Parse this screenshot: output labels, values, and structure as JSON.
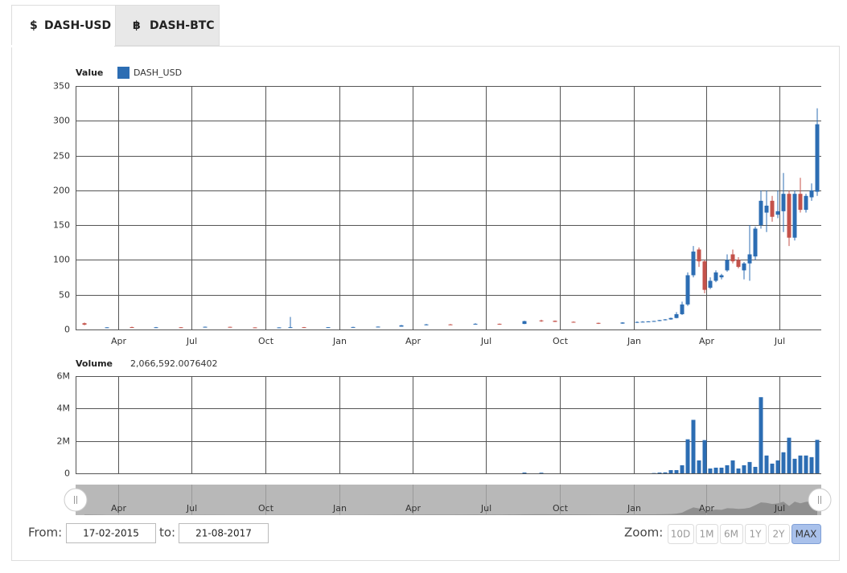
{
  "tabs": [
    {
      "icon": "$",
      "label": "DASH-USD"
    },
    {
      "icon": "฿",
      "label": "DASH-BTC"
    }
  ],
  "chart_data": [
    {
      "type": "candlestick",
      "y_label": "Value",
      "xlim": [
        "2015-02-07",
        "2017-08-22"
      ],
      "xticks": [
        {
          "value": "2015-04-01",
          "label": "Apr"
        },
        {
          "value": "2015-07-01",
          "label": "Jul"
        },
        {
          "value": "2015-10-01",
          "label": "Oct"
        },
        {
          "value": "2016-01-01",
          "label": "Jan"
        },
        {
          "value": "2016-04-01",
          "label": "Apr"
        },
        {
          "value": "2016-07-01",
          "label": "Jul"
        },
        {
          "value": "2016-10-01",
          "label": "Oct"
        },
        {
          "value": "2017-01-01",
          "label": "Jan"
        },
        {
          "value": "2017-04-01",
          "label": "Apr"
        },
        {
          "value": "2017-07-01",
          "label": "Jul"
        }
      ],
      "ylim": [
        0,
        350
      ],
      "yticks": [
        0,
        50,
        100,
        150,
        200,
        250,
        300,
        350
      ],
      "grid": true,
      "x": [
        "2015-02-18",
        "2015-03-18",
        "2015-04-18",
        "2015-05-18",
        "2015-06-18",
        "2015-07-18",
        "2015-08-18",
        "2015-09-18",
        "2015-10-18",
        "2015-11-01",
        "2015-11-18",
        "2015-12-18",
        "2016-01-18",
        "2016-02-18",
        "2016-03-18",
        "2016-04-18",
        "2016-05-18",
        "2016-06-18",
        "2016-07-18",
        "2016-08-18",
        "2016-09-08",
        "2016-09-25",
        "2016-10-18",
        "2016-11-18",
        "2016-12-18",
        "2017-01-05",
        "2017-01-12",
        "2017-01-19",
        "2017-01-26",
        "2017-02-02",
        "2017-02-09",
        "2017-02-16",
        "2017-02-23",
        "2017-03-02",
        "2017-03-09",
        "2017-03-16",
        "2017-03-23",
        "2017-03-30",
        "2017-04-06",
        "2017-04-13",
        "2017-04-20",
        "2017-04-27",
        "2017-05-04",
        "2017-05-11",
        "2017-05-18",
        "2017-05-25",
        "2017-06-01",
        "2017-06-08",
        "2017-06-15",
        "2017-06-22",
        "2017-06-29",
        "2017-07-06",
        "2017-07-13",
        "2017-07-20",
        "2017-07-27",
        "2017-08-03",
        "2017-08-10",
        "2017-08-17"
      ],
      "series": [
        {
          "name": "DASH_USD",
          "color": "#2c6db3",
          "down_color": "#c4524a",
          "open": [
            9,
            2.8,
            3.5,
            3,
            3.2,
            3.6,
            3.8,
            3,
            2.8,
            3,
            3.3,
            3.1,
            3.4,
            3.6,
            4.1,
            6.5,
            7.3,
            7.5,
            8.2,
            8,
            13,
            12.5,
            11,
            9.5,
            8.5,
            10,
            10.8,
            11.2,
            11.6,
            12.2,
            13.5,
            14.5,
            16.5,
            22,
            36,
            78,
            115,
            98,
            60,
            70,
            75,
            85,
            108,
            100,
            85,
            95,
            105,
            150,
            168,
            185,
            165,
            170,
            195,
            132,
            195,
            172,
            190,
            198
          ],
          "high": [
            10,
            3.3,
            4,
            3.6,
            3.5,
            4.2,
            4.1,
            3.2,
            3.2,
            18,
            3.6,
            3.5,
            3.9,
            4.3,
            6.5,
            8,
            8,
            9,
            8.5,
            12.5,
            14,
            12.8,
            11.5,
            9.8,
            10.5,
            11.5,
            12,
            12,
            12.5,
            13.8,
            15,
            17,
            25,
            40,
            82,
            120,
            118,
            100,
            75,
            85,
            80,
            108,
            115,
            104,
            97,
            150,
            148,
            200,
            200,
            192,
            200,
            225,
            200,
            200,
            218,
            195,
            210,
            318
          ],
          "low": [
            6,
            2.5,
            2.8,
            2.7,
            2.6,
            3.3,
            2.9,
            2.6,
            2.6,
            2.9,
            2.9,
            3,
            3.2,
            3.4,
            4,
            6,
            6.6,
            7,
            6.8,
            7.8,
            11,
            10.8,
            9.8,
            8,
            8.3,
            9.5,
            10.3,
            10.7,
            11.2,
            12,
            13,
            14,
            16,
            21,
            34,
            75,
            90,
            52,
            58,
            68,
            72,
            83,
            95,
            88,
            72,
            70,
            100,
            145,
            140,
            155,
            160,
            140,
            120,
            128,
            168,
            168,
            185,
            192
          ],
          "close": [
            7,
            3.1,
            3,
            3.2,
            2.9,
            3.9,
            3.1,
            2.8,
            3,
            3.3,
            3.1,
            3.3,
            3.6,
            4.1,
            6,
            7.3,
            7.1,
            8.2,
            7.3,
            12,
            12.5,
            11,
            10,
            8.3,
            10,
            10.8,
            11.2,
            11.6,
            12.2,
            13.5,
            14.5,
            16.5,
            22,
            36,
            78,
            112,
            98,
            57,
            70,
            82,
            78,
            100,
            98,
            90,
            95,
            108,
            145,
            185,
            178,
            162,
            170,
            195,
            132,
            195,
            172,
            192,
            200,
            295
          ]
        }
      ]
    },
    {
      "type": "bar",
      "title": "Volume",
      "readout": "2,066,592.0076402",
      "color": "#2c6db3",
      "ylim": [
        0,
        6000000
      ],
      "yticks": [
        {
          "value": 0,
          "label": "0"
        },
        {
          "value": 2000000,
          "label": "2M"
        },
        {
          "value": 4000000,
          "label": "4M"
        },
        {
          "value": 6000000,
          "label": "6M"
        }
      ],
      "grid": true,
      "x": [
        "2016-08-18",
        "2016-09-08",
        "2017-01-26",
        "2017-02-02",
        "2017-02-09",
        "2017-02-16",
        "2017-02-23",
        "2017-03-02",
        "2017-03-09",
        "2017-03-16",
        "2017-03-23",
        "2017-03-30",
        "2017-04-06",
        "2017-04-13",
        "2017-04-20",
        "2017-04-27",
        "2017-05-04",
        "2017-05-11",
        "2017-05-18",
        "2017-05-25",
        "2017-06-01",
        "2017-06-08",
        "2017-06-15",
        "2017-06-22",
        "2017-06-29",
        "2017-07-06",
        "2017-07-13",
        "2017-07-20",
        "2017-07-27",
        "2017-08-03",
        "2017-08-10",
        "2017-08-17"
      ],
      "values": [
        50000,
        40000,
        20000,
        50000,
        60000,
        200000,
        200000,
        500000,
        2100000,
        3300000,
        800000,
        2050000,
        300000,
        350000,
        350000,
        500000,
        800000,
        300000,
        500000,
        700000,
        400000,
        4700000,
        1100000,
        600000,
        800000,
        1300000,
        2200000,
        900000,
        1100000,
        1100000,
        1000000,
        2066592.0076402
      ]
    }
  ],
  "range_selector": {
    "from_label": "From:",
    "from": "17-02-2015",
    "to_label": "to:",
    "to": "21-08-2017"
  },
  "zoom": {
    "label": "Zoom:",
    "buttons": [
      "10D",
      "1M",
      "6M",
      "1Y",
      "2Y",
      "MAX"
    ],
    "active": 5
  }
}
